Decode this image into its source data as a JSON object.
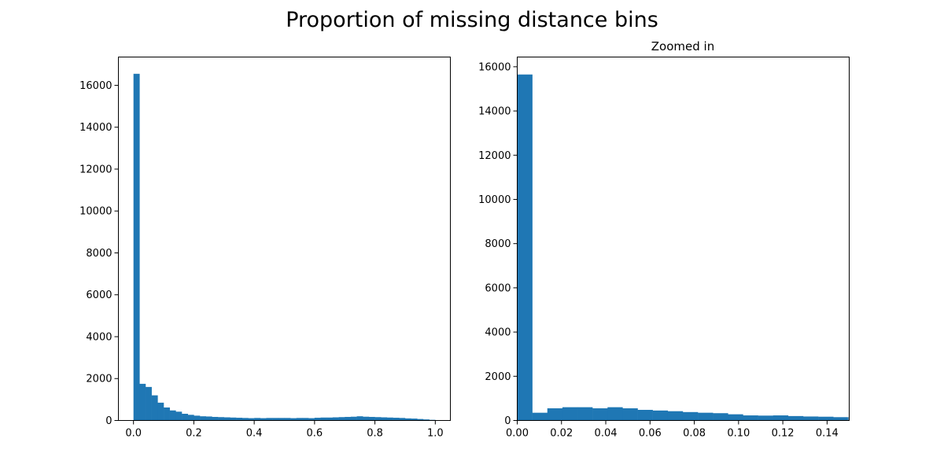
{
  "figure": {
    "suptitle": "Proportion of missing distance bins"
  },
  "colors": {
    "bar": "#1f77b4"
  },
  "chart_data": [
    {
      "type": "bar",
      "title": "",
      "xlabel": "",
      "ylabel": "",
      "xlim": [
        -0.05,
        1.05
      ],
      "ylim": [
        0,
        17350
      ],
      "xticks": [
        0.0,
        0.2,
        0.4,
        0.6,
        0.8,
        1.0
      ],
      "xtick_labels": [
        "0.0",
        "0.2",
        "0.4",
        "0.6",
        "0.8",
        "1.0"
      ],
      "yticks": [
        0,
        2000,
        4000,
        6000,
        8000,
        10000,
        12000,
        14000,
        16000
      ],
      "ytick_labels": [
        "0",
        "2000",
        "4000",
        "6000",
        "8000",
        "10000",
        "12000",
        "14000",
        "16000"
      ],
      "bin_edges": [
        0.0,
        0.02,
        0.04,
        0.06,
        0.08,
        0.1,
        0.12,
        0.14,
        0.16,
        0.18,
        0.2,
        0.22,
        0.24,
        0.26,
        0.28,
        0.3,
        0.32,
        0.34,
        0.36,
        0.38,
        0.4,
        0.42,
        0.44,
        0.46,
        0.48,
        0.5,
        0.52,
        0.54,
        0.56,
        0.58,
        0.6,
        0.62,
        0.64,
        0.66,
        0.68,
        0.7,
        0.72,
        0.74,
        0.76,
        0.78,
        0.8,
        0.82,
        0.84,
        0.86,
        0.88,
        0.9,
        0.92,
        0.94,
        0.96,
        0.98,
        1.0
      ],
      "values": [
        16550,
        1750,
        1600,
        1200,
        850,
        620,
        480,
        420,
        320,
        270,
        230,
        200,
        190,
        170,
        160,
        150,
        140,
        130,
        120,
        110,
        120,
        110,
        120,
        120,
        120,
        120,
        110,
        120,
        120,
        110,
        130,
        140,
        140,
        150,
        160,
        170,
        180,
        200,
        180,
        170,
        160,
        150,
        140,
        130,
        120,
        100,
        90,
        70,
        50,
        30
      ]
    },
    {
      "type": "bar",
      "title": "Zoomed in",
      "xlabel": "",
      "ylabel": "",
      "xlim": [
        0.0,
        0.15
      ],
      "ylim": [
        0,
        16440
      ],
      "xticks": [
        0.0,
        0.02,
        0.04,
        0.06,
        0.08,
        0.1,
        0.12,
        0.14
      ],
      "xtick_labels": [
        "0.00",
        "0.02",
        "0.04",
        "0.06",
        "0.08",
        "0.10",
        "0.12",
        "0.14"
      ],
      "yticks": [
        0,
        2000,
        4000,
        6000,
        8000,
        10000,
        12000,
        14000,
        16000
      ],
      "ytick_labels": [
        "0",
        "2000",
        "4000",
        "6000",
        "8000",
        "10000",
        "12000",
        "14000",
        "16000"
      ],
      "bin_edges": [
        0.0,
        0.0068,
        0.0136,
        0.0204,
        0.0272,
        0.034,
        0.0408,
        0.0476,
        0.0544,
        0.0612,
        0.068,
        0.0748,
        0.0816,
        0.0884,
        0.0952,
        0.102,
        0.1088,
        0.1156,
        0.1224,
        0.1292,
        0.136,
        0.1428,
        0.1496
      ],
      "values": [
        15650,
        350,
        550,
        600,
        600,
        550,
        600,
        550,
        480,
        450,
        420,
        380,
        350,
        330,
        280,
        230,
        220,
        230,
        200,
        180,
        170,
        150
      ]
    }
  ]
}
